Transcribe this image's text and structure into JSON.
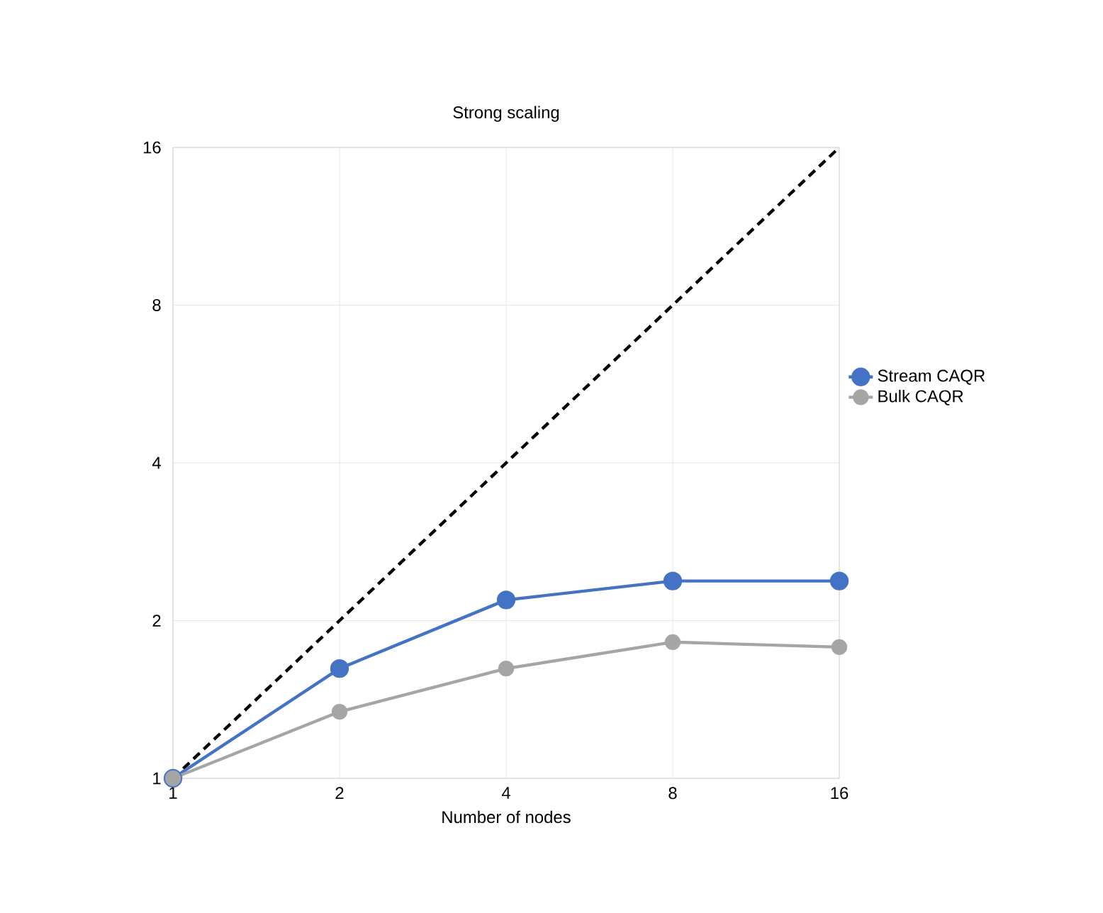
{
  "chart_data": {
    "type": "line",
    "title": "Strong scaling",
    "xlabel": "Number of nodes",
    "x": [
      1,
      2,
      4,
      8,
      16
    ],
    "series": [
      {
        "color": "#000000",
        "values": [
          1,
          2,
          4,
          8,
          16
        ],
        "line_style": "dashed",
        "marker": "none"
      },
      {
        "name": "Stream CAQR",
        "color": "#4472c4",
        "values": [
          1,
          1.62,
          2.19,
          2.38,
          2.38
        ]
      },
      {
        "name": "Bulk CAQR",
        "color": "#a5a5a5",
        "values": [
          1,
          1.34,
          1.62,
          1.82,
          1.78
        ]
      }
    ],
    "log": "xy",
    "xlim": [
      1,
      16
    ],
    "ylim": [
      1,
      16
    ],
    "xticks": [
      1,
      2,
      4,
      8,
      16
    ],
    "yticks": [
      1,
      2,
      4,
      8,
      16
    ],
    "grid": true,
    "legend": "right",
    "marker": "circle",
    "line_style": "solid"
  }
}
